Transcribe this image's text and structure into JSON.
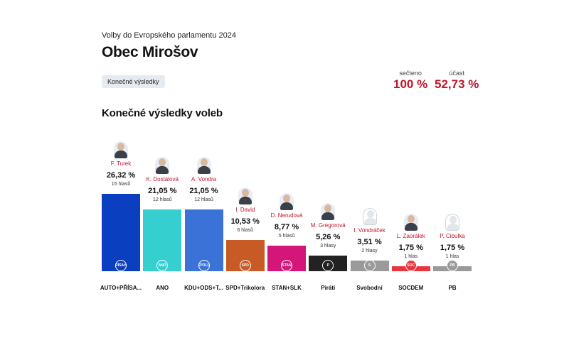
{
  "header": {
    "subtitle": "Volby do Evropského parlamentu 2024",
    "title": "Obec Mirošov",
    "tag": "Konečné výsledky"
  },
  "stats": {
    "counted_label": "sečteno",
    "counted_value": "100 %",
    "turnout_label": "účast",
    "turnout_value": "52,73 %"
  },
  "section_title": "Konečné výsledky voleb",
  "chart_data": {
    "type": "bar",
    "categories": [
      "AUTO+PŘÍSA...",
      "ANO",
      "KDU+ODS+T...",
      "SPD+Trikolora",
      "STAN+SLK",
      "Piráti",
      "Svobodní",
      "SOCDEM",
      "PB"
    ],
    "values": [
      26.32,
      21.05,
      21.05,
      10.53,
      8.77,
      5.26,
      3.51,
      1.75,
      1.75
    ],
    "value_labels": [
      "26,32 %",
      "21,05 %",
      "21,05 %",
      "10,53 %",
      "8,77 %",
      "5,26 %",
      "3,51 %",
      "1,75 %",
      "1,75 %"
    ],
    "candidates": [
      "F. Turek",
      "K. Dostálová",
      "A. Vondra",
      "I. David",
      "D. Nerudová",
      "M. Gregorová",
      "I. Vondráček",
      "L. Zaorálek",
      "P. Cibulka"
    ],
    "votes": [
      "15 hlasů",
      "12 hlasů",
      "12 hlasů",
      "6 hlasů",
      "5 hlasů",
      "3 hlasy",
      "2 hlasy",
      "1 hlas",
      "1 hlas"
    ],
    "logos": [
      "PŘÍSAHA",
      "ANO",
      "SPOLU",
      "SPD",
      "STAN",
      "P",
      "S",
      "SOC",
      "PB"
    ],
    "colors": [
      "#0a3fbf",
      "#35cfd0",
      "#3a72d8",
      "#c85a25",
      "#d4157a",
      "#222222",
      "#9a9a9a",
      "#e8363c",
      "#9a9a9a"
    ],
    "photo": [
      true,
      true,
      true,
      true,
      true,
      true,
      false,
      true,
      false
    ],
    "ylim": [
      0,
      26.32
    ]
  }
}
